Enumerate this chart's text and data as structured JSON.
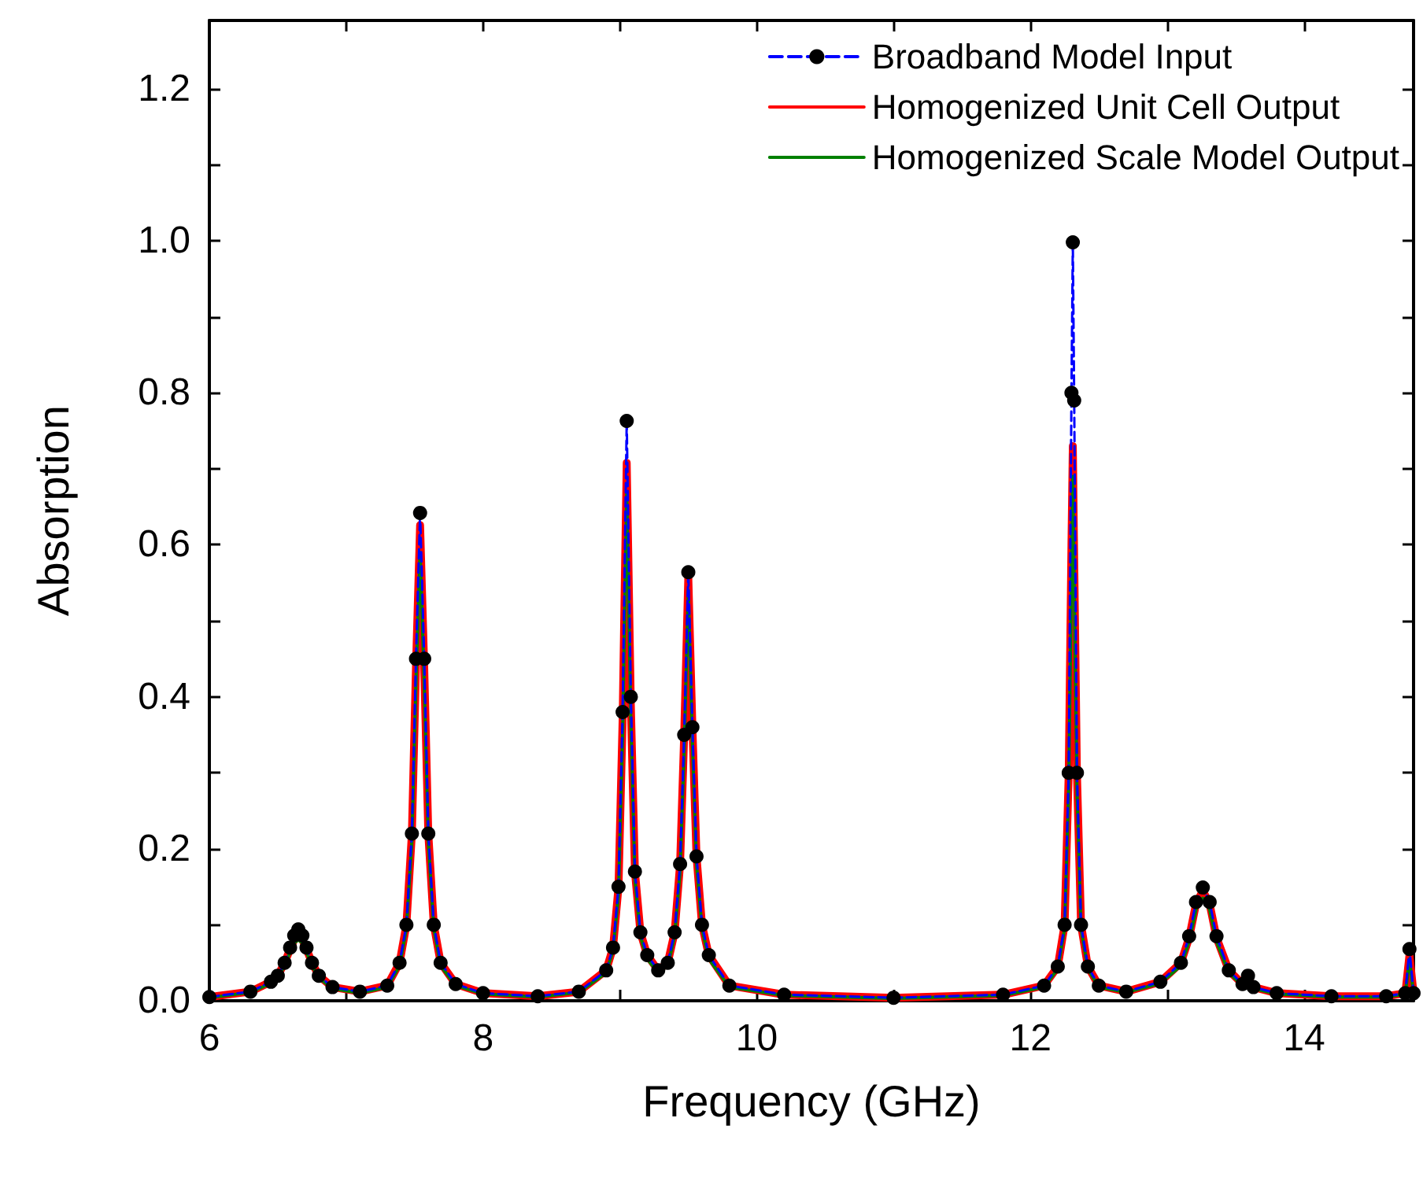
{
  "chart_data": {
    "type": "line",
    "xlabel": "Frequency (GHz)",
    "ylabel": "Absorption",
    "xlim": [
      6,
      14.8
    ],
    "xticks": [
      6,
      {
        "value": 7,
        "label": null
      },
      8,
      {
        "value": 9,
        "label": null
      },
      10,
      {
        "value": 11,
        "label": null
      },
      12,
      {
        "value": 13,
        "label": null
      },
      14
    ],
    "ylim": [
      0,
      1.29
    ],
    "yticks": [
      {
        "value": 0,
        "label": "0.0"
      },
      {
        "value": 0.1,
        "label": null
      },
      {
        "value": 0.2,
        "label": "0.2"
      },
      {
        "value": 0.3,
        "label": null
      },
      {
        "value": 0.4,
        "label": "0.4"
      },
      {
        "value": 0.5,
        "label": null
      },
      {
        "value": 0.6,
        "label": "0.6"
      },
      {
        "value": 0.7,
        "label": null
      },
      {
        "value": 0.8,
        "label": "0.8"
      },
      {
        "value": 0.9,
        "label": null
      },
      {
        "value": 1.0,
        "label": "1.0"
      },
      {
        "value": 1.1,
        "label": null
      },
      {
        "value": 1.2,
        "label": "1.2"
      }
    ],
    "grid": false,
    "legend": "top right",
    "x": [
      6.0,
      6.3,
      6.45,
      6.5,
      6.55,
      6.59,
      6.62,
      6.65,
      6.68,
      6.71,
      6.75,
      6.8,
      6.9,
      7.1,
      7.3,
      7.39,
      7.44,
      7.48,
      7.51,
      7.54,
      7.57,
      7.6,
      7.64,
      7.69,
      7.8,
      8.0,
      8.4,
      8.7,
      8.9,
      8.95,
      8.99,
      9.02,
      9.05,
      9.08,
      9.11,
      9.15,
      9.2,
      9.28,
      9.35,
      9.4,
      9.44,
      9.47,
      9.5,
      9.53,
      9.56,
      9.6,
      9.65,
      9.8,
      10.2,
      11.0,
      11.8,
      12.1,
      12.2,
      12.25,
      12.28,
      12.3,
      12.31,
      12.32,
      12.34,
      12.37,
      12.42,
      12.5,
      12.7,
      12.95,
      13.1,
      13.16,
      13.21,
      13.26,
      13.31,
      13.36,
      13.45,
      13.55,
      13.59,
      13.63,
      13.8,
      14.2,
      14.6,
      14.74,
      14.77,
      14.8
    ],
    "series": [
      {
        "name": "Broadband Model Input",
        "color": "#0000ff",
        "colors": [
          "#000000",
          "#000000",
          "#000000",
          "#000000",
          "#000000",
          "#000000",
          "#000000",
          "#000000",
          "#000000",
          "#000000",
          "#000000",
          "#000000",
          "#000000",
          "#000000",
          "#000000",
          "#000000",
          "#000000",
          "#000000",
          "#000000",
          "#000000",
          "#000000",
          "#000000",
          "#000000",
          "#000000",
          "#000000",
          "#000000",
          "#000000",
          "#000000",
          "#000000",
          "#000000",
          "#000000",
          "#000000",
          "#000000",
          "#000000",
          "#000000",
          "#000000",
          "#000000",
          "#000000",
          "#000000",
          "#000000",
          "#000000",
          "#000000",
          "#000000",
          "#000000",
          "#000000",
          "#000000",
          "#000000",
          "#000000",
          "#000000",
          "#000000",
          "#000000",
          "#000000",
          "#000000",
          "#000000",
          "#000000",
          "#000000",
          "#000000",
          "#000000",
          "#000000",
          "#000000",
          "#000000",
          "#000000",
          "#000000",
          "#000000",
          "#000000",
          "#000000",
          "#000000",
          "#000000",
          "#000000",
          "#000000",
          "#000000",
          "#000000",
          "#000000",
          "#000000",
          "#000000",
          "#000000",
          "#000000",
          "#000000",
          "#000000",
          "#000000"
        ],
        "marker": "circle",
        "line_style": "dashed",
        "values": [
          0.005,
          0.012,
          0.025,
          0.033,
          0.05,
          0.07,
          0.086,
          0.094,
          0.086,
          0.07,
          0.05,
          0.033,
          0.018,
          0.012,
          0.02,
          0.05,
          0.1,
          0.22,
          0.45,
          0.642,
          0.45,
          0.22,
          0.1,
          0.05,
          0.022,
          0.01,
          0.006,
          0.012,
          0.04,
          0.07,
          0.15,
          0.38,
          0.763,
          0.4,
          0.17,
          0.09,
          0.06,
          0.04,
          0.05,
          0.09,
          0.18,
          0.35,
          0.564,
          0.36,
          0.19,
          0.1,
          0.06,
          0.02,
          0.008,
          0.004,
          0.008,
          0.02,
          0.045,
          0.1,
          0.3,
          0.8,
          0.998,
          0.79,
          0.3,
          0.1,
          0.045,
          0.02,
          0.012,
          0.025,
          0.05,
          0.085,
          0.13,
          0.149,
          0.13,
          0.085,
          0.04,
          0.022,
          0.033,
          0.018,
          0.01,
          0.006,
          0.006,
          0.01,
          0.068,
          0.01
        ]
      },
      {
        "name": "Homogenized Unit Cell Output",
        "color": "#ff0000",
        "marker": "none",
        "line_style": "solid",
        "values": [
          0.005,
          0.012,
          0.025,
          0.033,
          0.05,
          0.068,
          0.08,
          0.086,
          0.08,
          0.068,
          0.05,
          0.033,
          0.018,
          0.012,
          0.02,
          0.05,
          0.1,
          0.22,
          0.44,
          0.626,
          0.44,
          0.22,
          0.1,
          0.05,
          0.022,
          0.01,
          0.006,
          0.012,
          0.04,
          0.07,
          0.15,
          0.37,
          0.708,
          0.39,
          0.17,
          0.09,
          0.06,
          0.04,
          0.05,
          0.09,
          0.18,
          0.35,
          0.558,
          0.36,
          0.19,
          0.1,
          0.06,
          0.02,
          0.008,
          0.004,
          0.008,
          0.02,
          0.045,
          0.1,
          0.3,
          0.6,
          0.73,
          0.58,
          0.3,
          0.1,
          0.045,
          0.02,
          0.012,
          0.025,
          0.05,
          0.083,
          0.127,
          0.145,
          0.127,
          0.083,
          0.04,
          0.022,
          0.03,
          0.018,
          0.01,
          0.006,
          0.006,
          0.01,
          0.06,
          0.01
        ]
      },
      {
        "name": "Homogenized Scale Model Output",
        "color": "#008000",
        "marker": "none",
        "line_style": "solid",
        "values": [
          0.004,
          0.011,
          0.023,
          0.03,
          0.046,
          0.064,
          0.076,
          0.08,
          0.076,
          0.064,
          0.046,
          0.03,
          0.016,
          0.01,
          0.018,
          0.046,
          0.095,
          0.21,
          0.42,
          0.59,
          0.42,
          0.21,
          0.095,
          0.046,
          0.02,
          0.009,
          0.005,
          0.011,
          0.037,
          0.066,
          0.14,
          0.35,
          0.667,
          0.37,
          0.16,
          0.085,
          0.055,
          0.037,
          0.046,
          0.085,
          0.17,
          0.33,
          0.54,
          0.34,
          0.18,
          0.095,
          0.055,
          0.018,
          0.007,
          0.003,
          0.007,
          0.018,
          0.042,
          0.095,
          0.28,
          0.56,
          0.69,
          0.55,
          0.28,
          0.095,
          0.042,
          0.018,
          0.011,
          0.023,
          0.046,
          0.078,
          0.12,
          0.135,
          0.12,
          0.078,
          0.037,
          0.02,
          0.025,
          0.016,
          0.009,
          0.005,
          0.005,
          0.009,
          0.055,
          0.009
        ]
      }
    ]
  }
}
